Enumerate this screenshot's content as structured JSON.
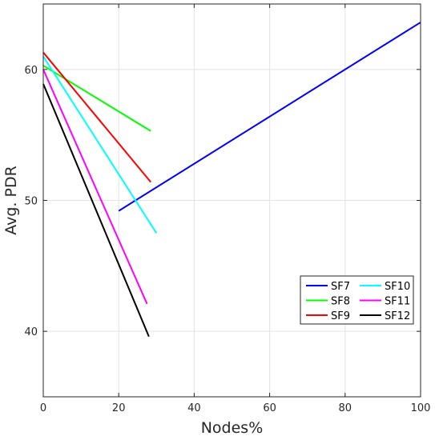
{
  "chart_data": {
    "type": "line",
    "title": "",
    "xlabel": "Nodes%",
    "ylabel": "Avg. PDR",
    "xlim": [
      0,
      100
    ],
    "ylim": [
      35,
      65
    ],
    "xticks": [
      0,
      20,
      40,
      60,
      80,
      100
    ],
    "yticks": [
      40,
      50,
      60
    ],
    "grid": true,
    "legend_position": "lower-right",
    "series": [
      {
        "name": "SF7",
        "color": "#0000ff",
        "x": [
          20,
          100
        ],
        "y": [
          49.2,
          63.6
        ]
      },
      {
        "name": "SF8",
        "color": "#00ff00",
        "x": [
          0,
          28.5
        ],
        "y": [
          60.3,
          55.3
        ]
      },
      {
        "name": "SF9",
        "color": "#ff0000",
        "x": [
          0,
          28.5
        ],
        "y": [
          61.3,
          51.4
        ]
      },
      {
        "name": "SF10",
        "color": "#00ffff",
        "x": [
          0,
          30
        ],
        "y": [
          61.0,
          47.5
        ]
      },
      {
        "name": "SF11",
        "color": "#ff00ff",
        "x": [
          0,
          27.5
        ],
        "y": [
          60.0,
          42.1
        ]
      },
      {
        "name": "SF12",
        "color": "#000000",
        "x": [
          0,
          28
        ],
        "y": [
          58.9,
          39.6
        ]
      }
    ]
  }
}
